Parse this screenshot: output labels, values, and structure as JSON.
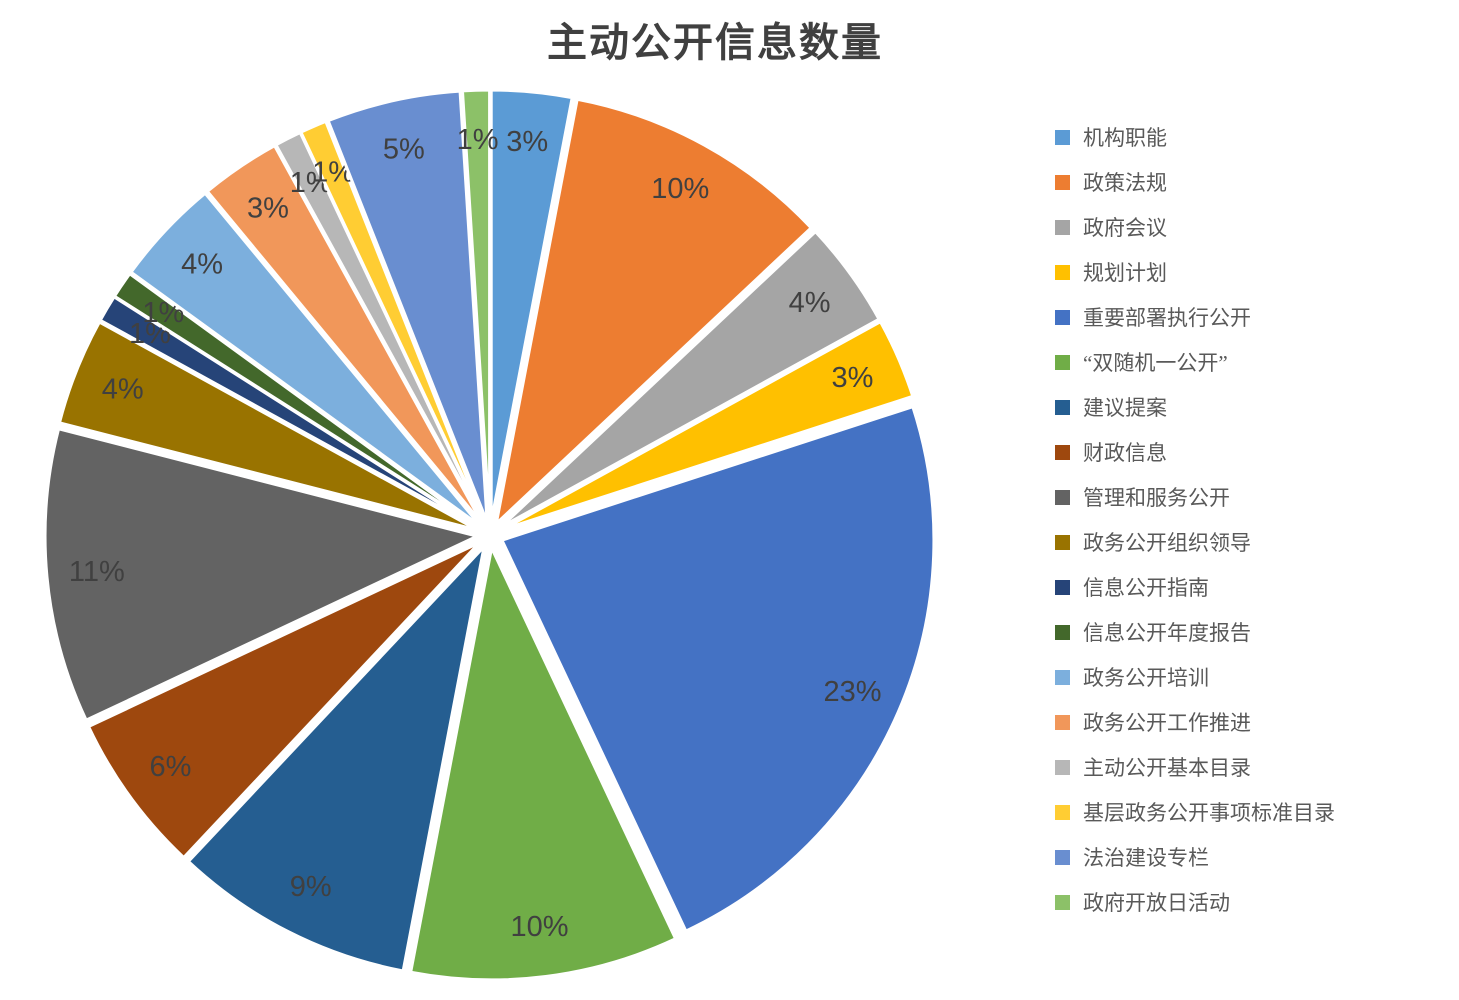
{
  "title": "主动公开信息数量",
  "colors": {
    "background": "#FFFFFF",
    "title_text": "#404040",
    "slice_label_text": "#404040",
    "legend_text": "#595959",
    "slice_border": "#FFFFFF"
  },
  "chart_data": {
    "type": "pie",
    "title": "主动公开信息数量",
    "unit": "percent",
    "legend_position": "right",
    "direction": "clockwise",
    "start_angle_deg": 0,
    "exploded": true,
    "slices": [
      {
        "label": "机构职能",
        "value": 3,
        "display": "3%",
        "color": "#5B9BD5"
      },
      {
        "label": "政策法规",
        "value": 10,
        "display": "10%",
        "color": "#ED7D31"
      },
      {
        "label": "政府会议",
        "value": 4,
        "display": "4%",
        "color": "#A5A5A5"
      },
      {
        "label": "规划计划",
        "value": 3,
        "display": "3%",
        "color": "#FFC000"
      },
      {
        "label": "重要部署执行公开",
        "value": 23,
        "display": "23%",
        "color": "#4472C4"
      },
      {
        "label": "“双随机一公开”",
        "value": 10,
        "display": "10%",
        "color": "#70AD47"
      },
      {
        "label": "建议提案",
        "value": 9,
        "display": "9%",
        "color": "#255E91"
      },
      {
        "label": "财政信息",
        "value": 6,
        "display": "6%",
        "color": "#9E480E"
      },
      {
        "label": "管理和服务公开",
        "value": 11,
        "display": "11%",
        "color": "#636363"
      },
      {
        "label": "政务公开组织领导",
        "value": 4,
        "display": "4%",
        "color": "#997300"
      },
      {
        "label": "信息公开指南",
        "value": 1,
        "display": "1%",
        "color": "#264478"
      },
      {
        "label": "信息公开年度报告",
        "value": 1,
        "display": "1%",
        "color": "#43682B"
      },
      {
        "label": "政务公开培训",
        "value": 4,
        "display": "4%",
        "color": "#7CAFDD"
      },
      {
        "label": "政务公开工作推进",
        "value": 3,
        "display": "3%",
        "color": "#F1975A"
      },
      {
        "label": "主动公开基本目录",
        "value": 1,
        "display": "1%",
        "color": "#B7B7B7"
      },
      {
        "label": "基层政务公开事项标准目录",
        "value": 1,
        "display": "1%",
        "color": "#FFCD33"
      },
      {
        "label": "法治建设专栏",
        "value": 5,
        "display": "5%",
        "color": "#698ED0"
      },
      {
        "label": "政府开放日活动",
        "value": 1,
        "display": "1%",
        "color": "#8CC168"
      }
    ]
  }
}
